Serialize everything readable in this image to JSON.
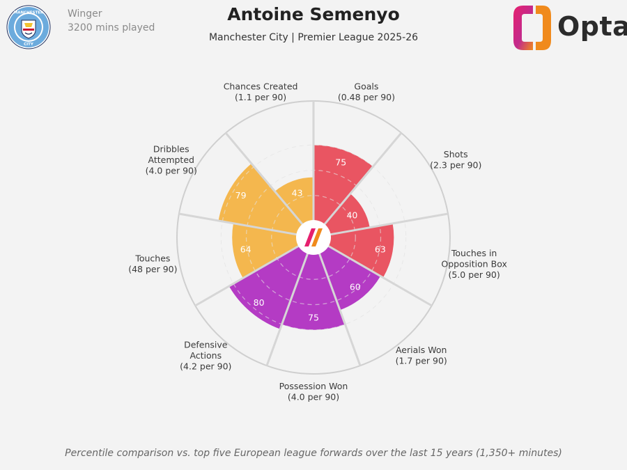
{
  "header": {
    "position_role": "Winger",
    "minutes_played": "3200 mins played",
    "player_name": "Antoine Semenyo",
    "subtitle": "Manchester City | Premier League 2025-26",
    "brand": "Opta",
    "badge_text_top": "MANCHESTER",
    "badge_text_bottom": "CITY"
  },
  "colors": {
    "attacking": "#e95562",
    "possession": "#f4b74e",
    "defending": "#b43bc4",
    "background": "#f3f3f3",
    "club_blue": "#6cabdd"
  },
  "chart_data": {
    "type": "polar-bar",
    "scale": [
      0,
      100
    ],
    "rings": [
      25,
      50,
      75
    ],
    "start_angle_deg": 0,
    "categories": [
      {
        "name": "Goals",
        "per90": "(0.48 per 90)",
        "percentile": 75,
        "group": "attacking"
      },
      {
        "name": "Shots",
        "per90": "(2.3 per 90)",
        "percentile": 40,
        "group": "attacking"
      },
      {
        "name": "Touches in Opposition Box",
        "label_lines": [
          "Touches in",
          "Opposition Box"
        ],
        "per90": "(5.0 per 90)",
        "percentile": 63,
        "group": "attacking"
      },
      {
        "name": "Aerials Won",
        "per90": "(1.7 per 90)",
        "percentile": 60,
        "group": "defending"
      },
      {
        "name": "Possession Won",
        "per90": "(4.0 per 90)",
        "percentile": 75,
        "group": "defending"
      },
      {
        "name": "Defensive Actions",
        "label_lines": [
          "Defensive",
          "Actions"
        ],
        "per90": "(4.2 per 90)",
        "percentile": 80,
        "group": "defending"
      },
      {
        "name": "Touches",
        "per90": "(48 per 90)",
        "percentile": 64,
        "group": "possession"
      },
      {
        "name": "Dribbles Attempted",
        "label_lines": [
          "Dribbles",
          "Attempted"
        ],
        "per90": "(4.0 per 90)",
        "percentile": 79,
        "group": "possession"
      },
      {
        "name": "Chances Created",
        "per90": "(1.1 per 90)",
        "percentile": 43,
        "group": "possession"
      }
    ]
  },
  "footnote": "Percentile comparison vs. top five European league forwards over the last 15 years (1,350+ minutes)"
}
